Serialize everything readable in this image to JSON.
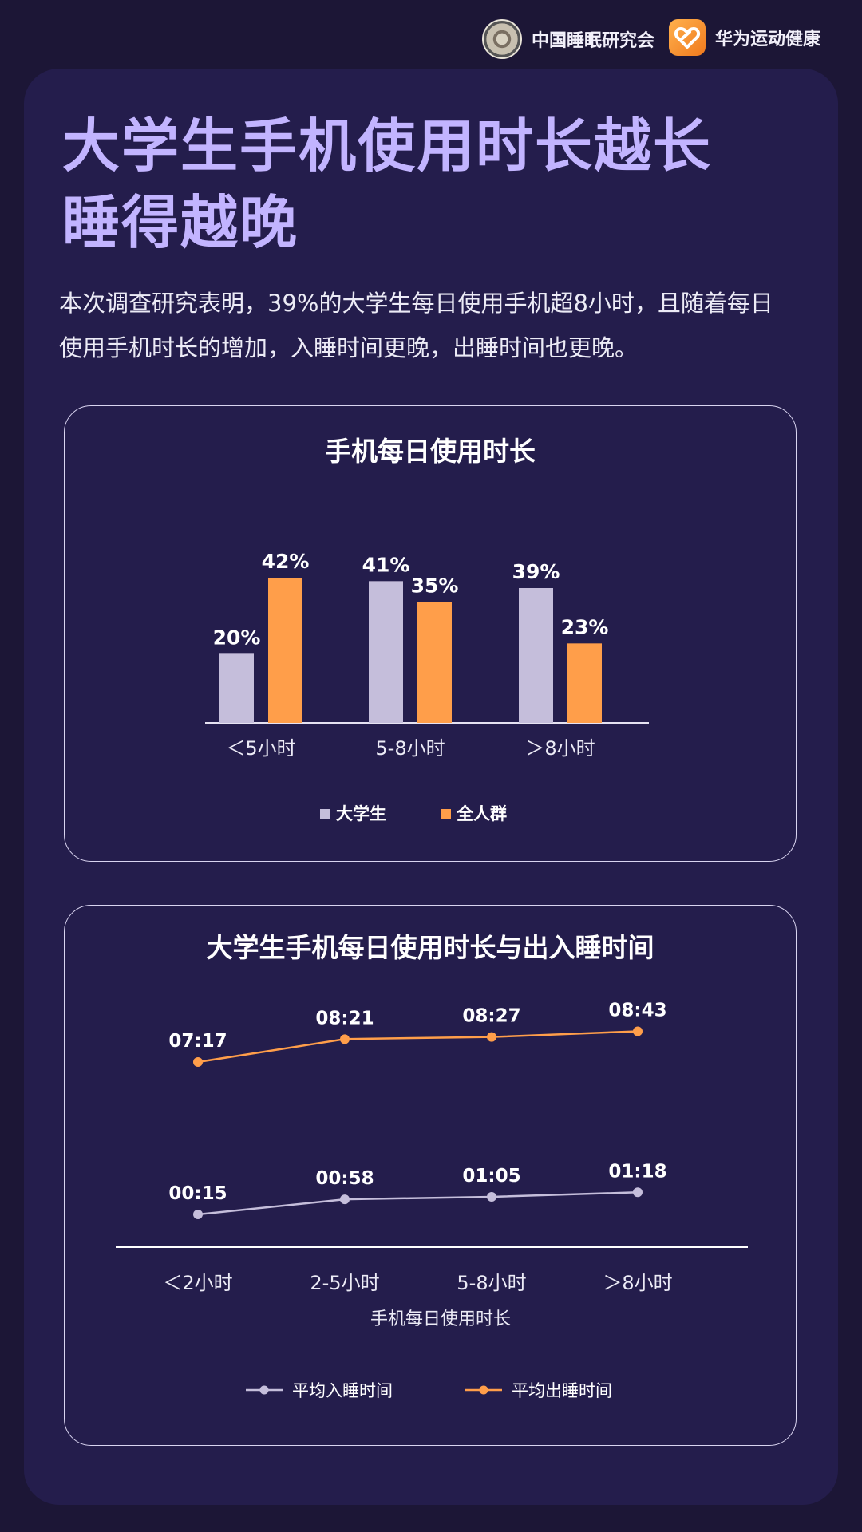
{
  "header": {
    "org1_name": "中国睡眠研究会",
    "org2_name": "华为运动健康"
  },
  "title_lines": [
    "大学生手机使用时长越长",
    "睡得越晚"
  ],
  "description": "本次调查研究表明，39%的大学生每日使用手机超8小时，且随着每日使用手机时长的增加，入睡时间更晚，出睡时间也更晚。",
  "colors": {
    "background": "#1c1636",
    "card": "#241d4c",
    "title": "#c2b4ff",
    "students": "#c5bedb",
    "all_people": "#ff9e4a"
  },
  "chart_data": [
    {
      "type": "bar",
      "title": "手机每日使用时长",
      "categories": [
        "＜5小时",
        "5-8小时",
        "＞8小时"
      ],
      "series": [
        {
          "name": "大学生",
          "values": [
            20,
            41,
            39
          ],
          "labels": [
            "20%",
            "41%",
            "39%"
          ],
          "color": "#c5bedb"
        },
        {
          "name": "全人群",
          "values": [
            42,
            35,
            23
          ],
          "labels": [
            "42%",
            "35%",
            "23%"
          ],
          "color": "#ff9e4a"
        }
      ],
      "ylim": [
        0,
        42
      ],
      "legend_position": "bottom-center",
      "grid": false
    },
    {
      "type": "line",
      "title": "大学生手机每日使用时长与出入睡时间",
      "xlabel": "手机每日使用时长",
      "categories": [
        "＜2小时",
        "2-5小时",
        "5-8小时",
        "＞8小时"
      ],
      "series": [
        {
          "name": "平均入睡时间",
          "values": [
            "00:15",
            "00:58",
            "01:05",
            "01:18"
          ],
          "color": "#c5bedb"
        },
        {
          "name": "平均出睡时间",
          "values": [
            "07:17",
            "08:21",
            "08:27",
            "08:43"
          ],
          "color": "#ff9e4a"
        }
      ],
      "legend_position": "bottom-center",
      "grid": false
    }
  ]
}
